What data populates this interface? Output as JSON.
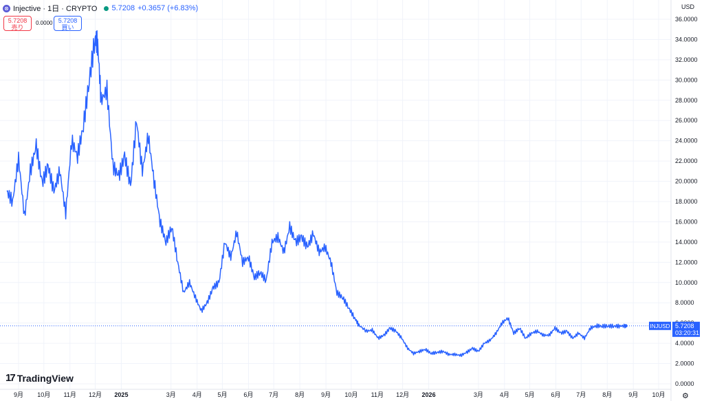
{
  "header": {
    "symbol_title": "Injective · 1日 · CRYPTO",
    "logo_glyph": "⊗",
    "last_price": "5.7208",
    "change": "+0.3657 (+6.83%)"
  },
  "trade": {
    "sell_price": "5.7208",
    "sell_label": "売り",
    "spread": "0.0000",
    "buy_price": "5.7208",
    "buy_label": "買い"
  },
  "currency": "USD",
  "branding": {
    "name": "TradingView",
    "mark": "17"
  },
  "price_tag": {
    "symbol": "INJUSD",
    "price": "5.7208",
    "countdown": "03:20:31"
  },
  "colors": {
    "line": "#2962ff",
    "grid": "#f0f3fa",
    "text": "#131722"
  },
  "chart_data": {
    "type": "line",
    "title": "",
    "series": [
      {
        "name": "INJUSD",
        "x": [
          "2024-08-18",
          "2024-08-25",
          "2024-09-01",
          "2024-09-08",
          "2024-09-15",
          "2024-09-22",
          "2024-09-29",
          "2024-10-06",
          "2024-10-13",
          "2024-10-20",
          "2024-10-27",
          "2024-11-03",
          "2024-11-10",
          "2024-11-17",
          "2024-11-24",
          "2024-12-01",
          "2024-12-04",
          "2024-12-08",
          "2024-12-15",
          "2024-12-22",
          "2024-12-29",
          "2025-01-05",
          "2025-01-12",
          "2025-01-19",
          "2025-01-26",
          "2025-02-02",
          "2025-02-09",
          "2025-02-16",
          "2025-02-23",
          "2025-03-02",
          "2025-03-09",
          "2025-03-16",
          "2025-03-23",
          "2025-03-30",
          "2025-04-06",
          "2025-04-13",
          "2025-04-20",
          "2025-04-27",
          "2025-05-04",
          "2025-05-11",
          "2025-05-18",
          "2025-05-25",
          "2025-06-01",
          "2025-06-08",
          "2025-06-15",
          "2025-06-22",
          "2025-06-29",
          "2025-07-06",
          "2025-07-13",
          "2025-07-20",
          "2025-07-27",
          "2025-08-03",
          "2025-08-10",
          "2025-08-17",
          "2025-08-24",
          "2025-08-31",
          "2025-09-07",
          "2025-09-14",
          "2025-09-21",
          "2025-09-28",
          "2025-10-05",
          "2025-10-10",
          "2025-10-19",
          "2025-10-26",
          "2025-11-02",
          "2025-11-09",
          "2025-11-16",
          "2025-11-23",
          "2025-11-30",
          "2025-12-07",
          "2025-12-14",
          "2025-12-21",
          "2025-12-28",
          "2026-01-04",
          "2026-01-11",
          "2026-01-18",
          "2026-01-25",
          "2026-02-01",
          "2026-02-08",
          "2026-02-15",
          "2026-02-22",
          "2026-03-01",
          "2026-03-08",
          "2026-03-15",
          "2026-03-22",
          "2026-03-29",
          "2026-04-05",
          "2026-04-12",
          "2026-04-19",
          "2026-04-26",
          "2026-05-03",
          "2026-05-10",
          "2026-05-17",
          "2026-05-24",
          "2026-05-31",
          "2026-06-07",
          "2026-06-14",
          "2026-06-21",
          "2026-06-28",
          "2026-07-05",
          "2026-07-12",
          "2026-07-19",
          "2026-07-26",
          "2026-08-02",
          "2026-08-09",
          "2026-08-16",
          "2026-08-23"
        ],
        "values": [
          19.0,
          18.0,
          22.3,
          16.5,
          21.0,
          23.5,
          19.8,
          21.5,
          19.0,
          21.0,
          16.8,
          24.0,
          22.5,
          25.5,
          30.0,
          34.2,
          33.5,
          28.0,
          29.0,
          21.5,
          20.5,
          22.5,
          19.5,
          26.0,
          21.0,
          24.5,
          20.0,
          16.0,
          14.0,
          15.5,
          12.0,
          9.0,
          10.0,
          8.5,
          7.2,
          8.0,
          9.5,
          10.0,
          14.0,
          12.5,
          15.0,
          12.0,
          12.5,
          10.5,
          11.0,
          10.2,
          14.0,
          14.5,
          13.0,
          15.5,
          14.0,
          14.5,
          13.5,
          14.8,
          13.0,
          13.5,
          12.0,
          9.0,
          8.5,
          7.5,
          6.5,
          5.8,
          5.2,
          5.3,
          4.5,
          4.8,
          5.5,
          5.2,
          4.5,
          3.5,
          3.0,
          3.2,
          3.4,
          3.0,
          3.1,
          3.2,
          2.9,
          2.9,
          2.8,
          3.1,
          3.5,
          3.2,
          4.0,
          4.3,
          5.0,
          6.0,
          6.5,
          5.0,
          5.5,
          4.5,
          5.0,
          5.2,
          4.8,
          4.8,
          5.5,
          5.0,
          5.2,
          4.5,
          5.0,
          4.5,
          5.5,
          5.7208,
          5.7,
          5.7,
          5.7,
          5.7,
          5.72
        ]
      }
    ],
    "ylim": [
      0,
      37
    ],
    "y_ticks": [
      "0.0000",
      "2.0000",
      "4.0000",
      "6.0000",
      "8.0000",
      "10.0000",
      "12.0000",
      "14.0000",
      "16.0000",
      "18.0000",
      "20.0000",
      "22.0000",
      "24.0000",
      "26.0000",
      "28.0000",
      "30.0000",
      "32.0000",
      "34.0000",
      "36.0000"
    ],
    "x_ticks": [
      {
        "label": "9月",
        "date": "2024-09-01"
      },
      {
        "label": "10月",
        "date": "2024-10-01"
      },
      {
        "label": "11月",
        "date": "2024-11-01"
      },
      {
        "label": "12月",
        "date": "2024-12-01"
      },
      {
        "label": "2025",
        "date": "2025-01-01",
        "bold": true
      },
      {
        "label": "3月",
        "date": "2025-03-01"
      },
      {
        "label": "4月",
        "date": "2025-04-01"
      },
      {
        "label": "5月",
        "date": "2025-05-01"
      },
      {
        "label": "6月",
        "date": "2025-06-01"
      },
      {
        "label": "7月",
        "date": "2025-07-01"
      },
      {
        "label": "8月",
        "date": "2025-08-01"
      },
      {
        "label": "9月",
        "date": "2025-09-01"
      },
      {
        "label": "10月",
        "date": "2025-10-01"
      },
      {
        "label": "11月",
        "date": "2025-11-01"
      },
      {
        "label": "12月",
        "date": "2025-12-01"
      },
      {
        "label": "2026",
        "date": "2026-01-01",
        "bold": true
      },
      {
        "label": "3月",
        "date": "2026-03-01"
      },
      {
        "label": "4月",
        "date": "2026-04-01"
      },
      {
        "label": "5月",
        "date": "2026-05-01"
      },
      {
        "label": "6月",
        "date": "2026-06-01"
      },
      {
        "label": "7月",
        "date": "2026-07-01"
      },
      {
        "label": "8月",
        "date": "2026-08-01"
      },
      {
        "label": "9月",
        "date": "2026-09-01"
      },
      {
        "label": "10月",
        "date": "2026-10-01"
      }
    ],
    "last_value": 5.7208,
    "grid": true
  }
}
